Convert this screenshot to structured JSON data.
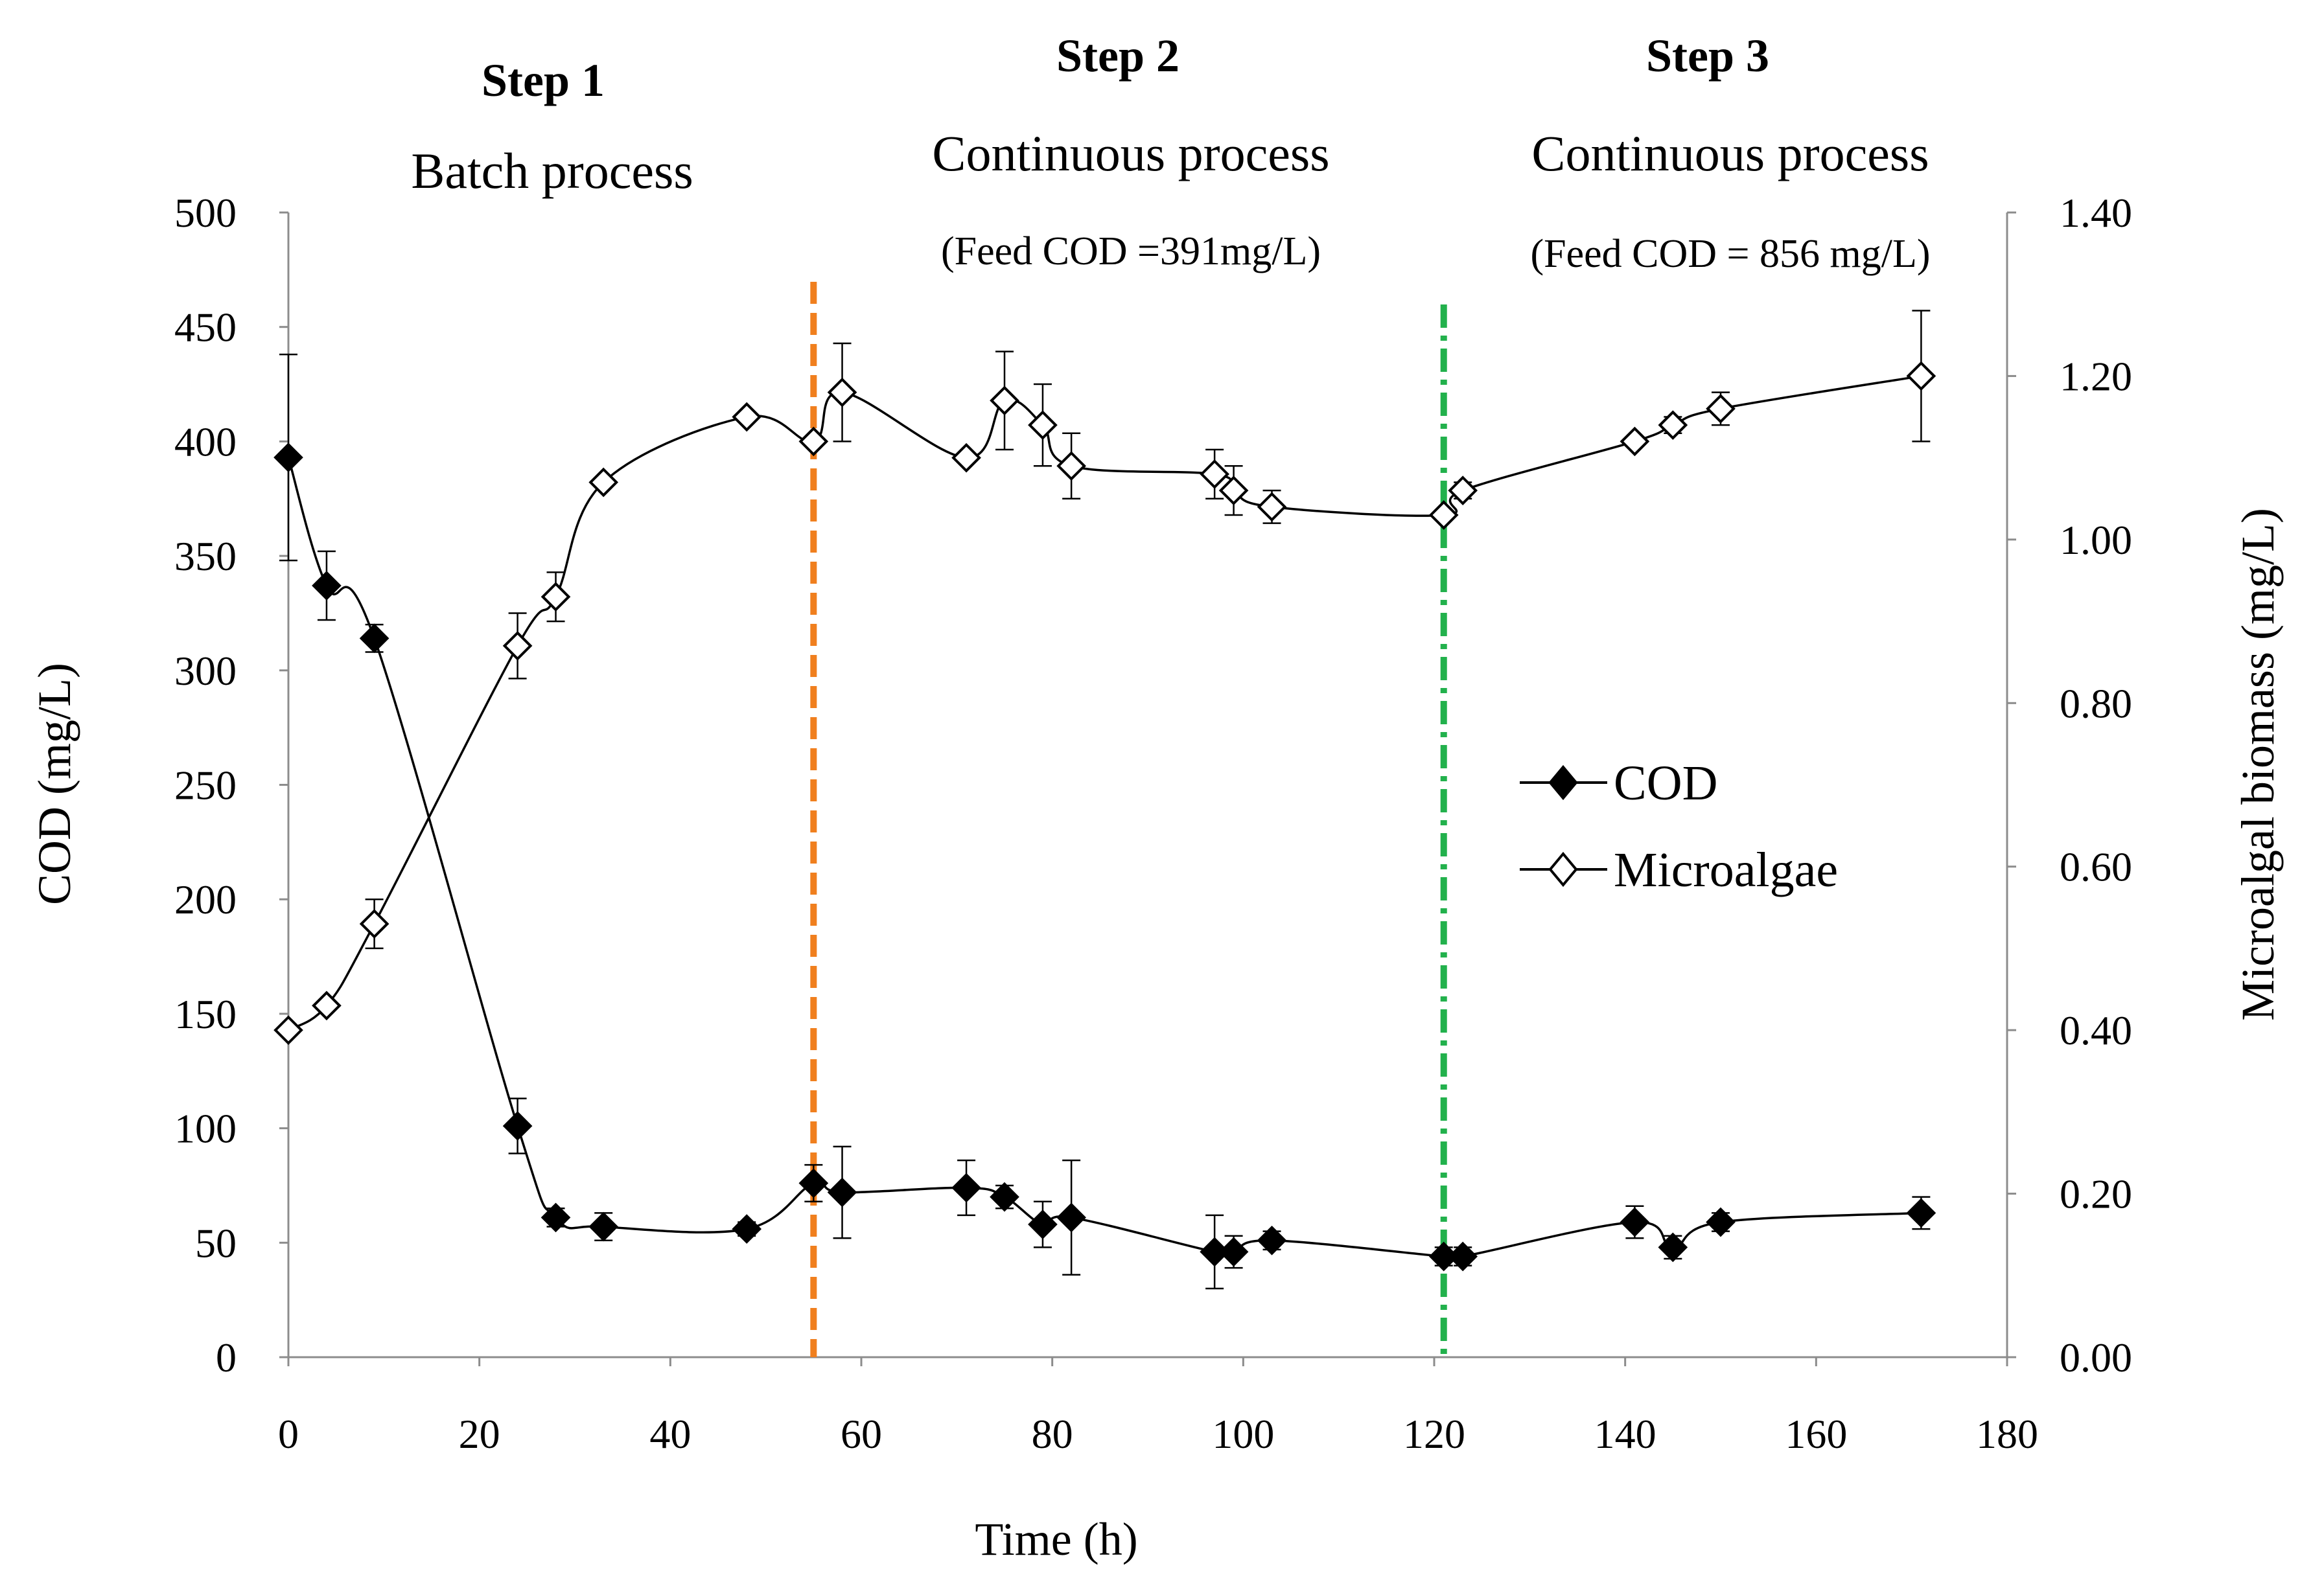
{
  "chart_data": {
    "type": "line",
    "x_axis": {
      "label": "Time (h)",
      "range": [
        0,
        180
      ],
      "ticks": [
        0,
        20,
        40,
        60,
        80,
        100,
        120,
        140,
        160,
        180
      ],
      "tick_labels": [
        "0",
        "20",
        "40",
        "60",
        "80",
        "100",
        "120",
        "140",
        "160",
        "180"
      ]
    },
    "y_axis_left": {
      "label": "COD (mg/L)",
      "range": [
        0,
        500
      ],
      "ticks": [
        0,
        50,
        100,
        150,
        200,
        250,
        300,
        350,
        400,
        450,
        500
      ],
      "tick_labels": [
        "0",
        "50",
        "100",
        "150",
        "200",
        "250",
        "300",
        "350",
        "400",
        "450",
        "500"
      ]
    },
    "y_axis_right": {
      "label": "Microalgal biomass (mg/L)",
      "range": [
        0,
        1.4
      ],
      "ticks": [
        0,
        0.2,
        0.4,
        0.6,
        0.8,
        1.0,
        1.2,
        1.4
      ],
      "tick_labels": [
        "0.00",
        "0.20",
        "0.40",
        "0.60",
        "0.80",
        "1.00",
        "1.20",
        "1.40"
      ]
    },
    "series": [
      {
        "name": "COD",
        "axis": "left",
        "marker": "filled-diamond",
        "x": [
          0,
          4,
          9,
          24,
          28,
          33,
          48,
          55,
          58,
          71,
          75,
          79,
          82,
          97,
          99,
          103,
          121,
          123,
          141,
          145,
          150,
          171
        ],
        "y": [
          393,
          337,
          314,
          101,
          61,
          57,
          56,
          76,
          72,
          74,
          70,
          58,
          61,
          46,
          46,
          51,
          44,
          44,
          59,
          48,
          59,
          63
        ],
        "err": [
          45,
          15,
          6,
          12,
          4,
          6,
          3,
          8,
          20,
          12,
          5,
          10,
          25,
          16,
          7,
          4,
          4,
          4,
          7,
          5,
          4,
          7
        ]
      },
      {
        "name": "Microalgae",
        "axis": "right",
        "marker": "open-diamond",
        "x": [
          0,
          4,
          9,
          24,
          28,
          33,
          48,
          55,
          58,
          71,
          75,
          79,
          82,
          97,
          99,
          103,
          121,
          123,
          141,
          145,
          150,
          171
        ],
        "y": [
          0.4,
          0.43,
          0.53,
          0.87,
          0.93,
          1.07,
          1.15,
          1.12,
          1.18,
          1.1,
          1.17,
          1.14,
          1.09,
          1.08,
          1.06,
          1.04,
          1.03,
          1.06,
          1.12,
          1.14,
          1.16,
          1.2
        ],
        "err": [
          0.0,
          0.0,
          0.03,
          0.04,
          0.03,
          0.0,
          0.0,
          0.0,
          0.06,
          0.0,
          0.06,
          0.05,
          0.04,
          0.03,
          0.03,
          0.02,
          0.0,
          0.01,
          0.0,
          0.01,
          0.02,
          0.08
        ]
      }
    ],
    "dividers": [
      {
        "x": 55,
        "color": "#f07f1e"
      },
      {
        "x": 121,
        "color": "#22b14c"
      }
    ],
    "annotations": [
      {
        "step": "Step 1",
        "description": "Batch process",
        "feed": ""
      },
      {
        "step": "Step 2",
        "description": "Continuous process",
        "feed": "(Feed COD =391mg/L)"
      },
      {
        "step": "Step 3",
        "description": "Continuous process",
        "feed": "(Feed COD = 856 mg/L)"
      }
    ],
    "legend": {
      "placement": "center-right",
      "entries": [
        "COD",
        "Microalgae"
      ]
    }
  }
}
